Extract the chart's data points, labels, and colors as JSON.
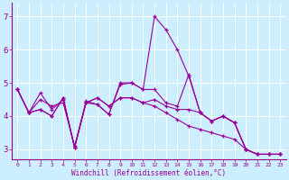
{
  "xlabel": "Windchill (Refroidissement éolien,°C)",
  "background_color": "#cceeff",
  "line_color": "#990099",
  "xlim": [
    -0.5,
    23.5
  ],
  "ylim": [
    2.7,
    7.4
  ],
  "yticks": [
    3,
    4,
    5,
    6,
    7
  ],
  "xticks": [
    0,
    1,
    2,
    3,
    4,
    5,
    6,
    7,
    8,
    9,
    10,
    11,
    12,
    13,
    14,
    15,
    16,
    17,
    18,
    19,
    20,
    21,
    22,
    23
  ],
  "series": [
    {
      "x": [
        0,
        1,
        2,
        3,
        4,
        5,
        6,
        7,
        8,
        9,
        10,
        11,
        12,
        13,
        14,
        15,
        16,
        17,
        18,
        19,
        20,
        21,
        22,
        23
      ],
      "y": [
        4.8,
        4.1,
        4.5,
        4.3,
        4.4,
        3.1,
        4.4,
        4.35,
        4.05,
        5.0,
        5.0,
        4.8,
        4.8,
        4.4,
        4.3,
        5.25,
        4.1,
        3.85,
        4.0,
        3.8,
        3.0,
        2.85,
        2.85,
        2.85
      ]
    },
    {
      "x": [
        0,
        1,
        2,
        3,
        4,
        5,
        6,
        7,
        8,
        9,
        10,
        11,
        12,
        13,
        14,
        15,
        16,
        17,
        18,
        19,
        20,
        21,
        22,
        23
      ],
      "y": [
        4.8,
        4.1,
        4.7,
        4.2,
        4.5,
        3.05,
        4.45,
        4.35,
        4.05,
        4.95,
        5.0,
        4.8,
        7.0,
        6.6,
        6.0,
        5.2,
        4.1,
        3.85,
        4.0,
        3.8,
        3.0,
        2.85,
        2.85,
        2.85
      ]
    },
    {
      "x": [
        0,
        1,
        2,
        3,
        4,
        5,
        6,
        7,
        8,
        9,
        10,
        11,
        12,
        13,
        14,
        15,
        16,
        17,
        18,
        19,
        20,
        21,
        22,
        23
      ],
      "y": [
        4.8,
        4.1,
        4.2,
        4.0,
        4.55,
        3.05,
        4.4,
        4.55,
        4.3,
        4.55,
        4.55,
        4.4,
        4.5,
        4.3,
        4.2,
        4.2,
        4.1,
        3.85,
        4.0,
        3.8,
        3.0,
        2.85,
        2.85,
        2.85
      ]
    },
    {
      "x": [
        0,
        1,
        2,
        3,
        4,
        5,
        6,
        7,
        8,
        9,
        10,
        11,
        12,
        13,
        14,
        15,
        16,
        17,
        18,
        19,
        20,
        21,
        22,
        23
      ],
      "y": [
        4.8,
        4.1,
        4.2,
        4.0,
        4.55,
        3.05,
        4.4,
        4.55,
        4.3,
        4.55,
        4.55,
        4.4,
        4.3,
        4.1,
        3.9,
        3.7,
        3.6,
        3.5,
        3.4,
        3.3,
        3.0,
        2.85,
        2.85,
        2.85
      ]
    }
  ]
}
